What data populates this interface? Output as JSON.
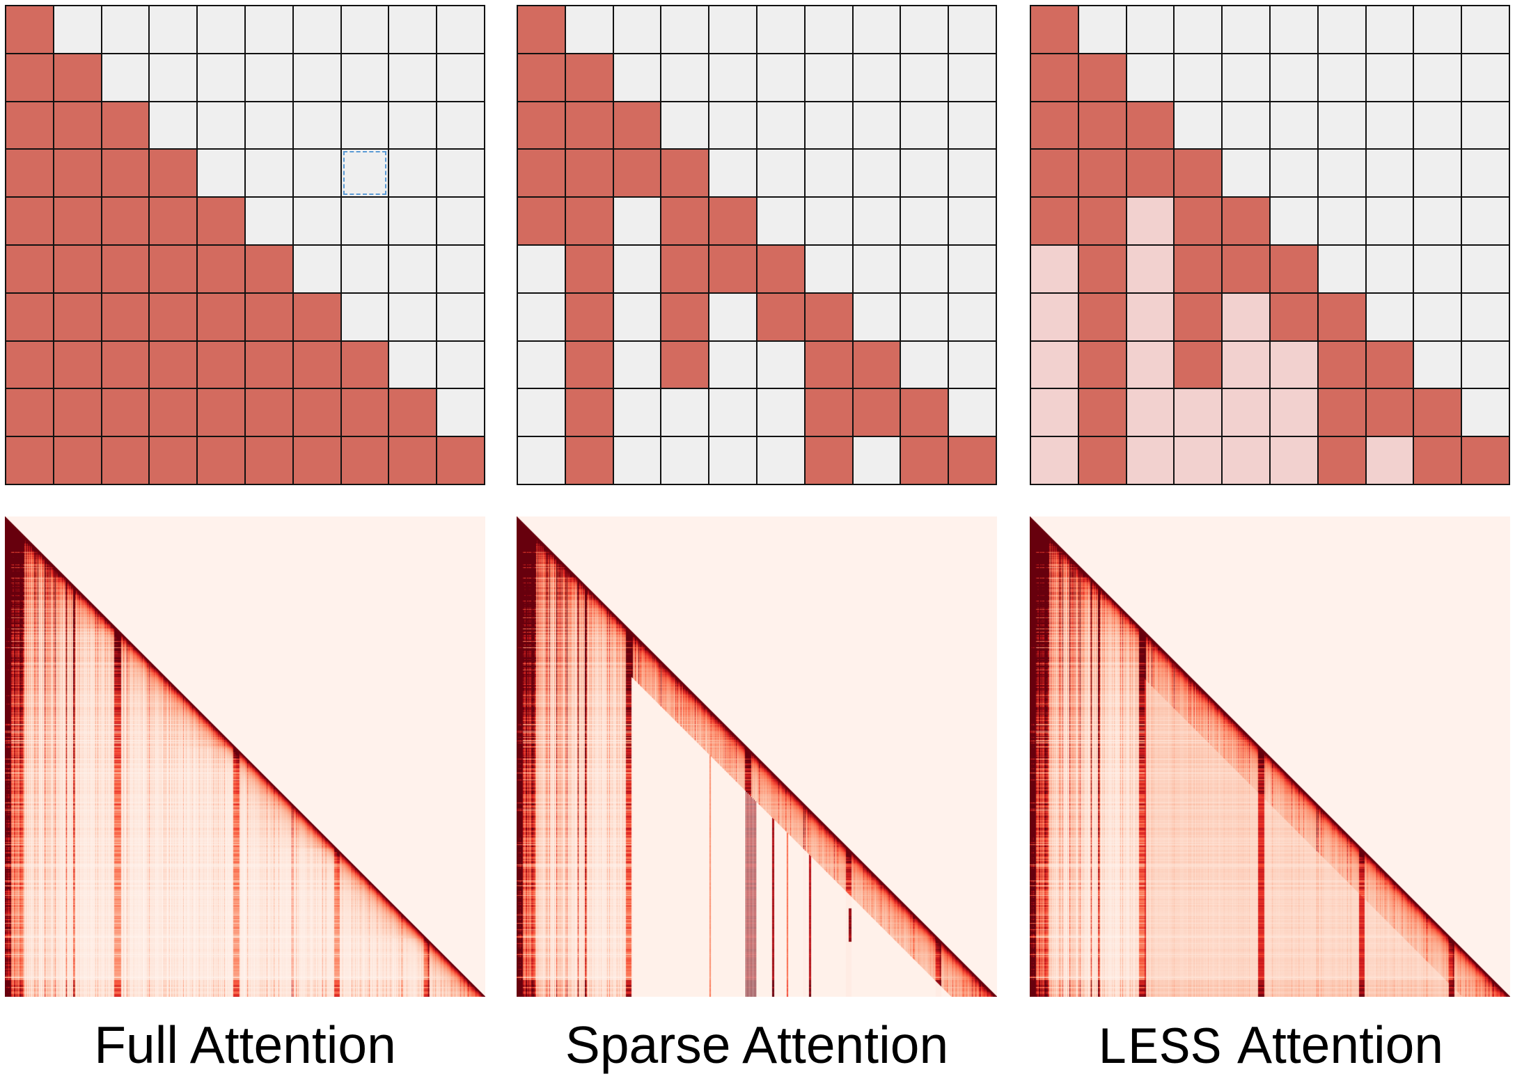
{
  "colors": {
    "attended": "#d36b5f",
    "masked": "#efefef",
    "compressed": "#f2d1cf",
    "grid_line": "#111111",
    "highlight": "#5b9bd5",
    "text": "#000000"
  },
  "heatmap_colormap": [
    "#fff5f0",
    "#fee0d2",
    "#fcbba1",
    "#fc9272",
    "#fb6a4a",
    "#ef3b2c",
    "#cb181d",
    "#a50f15",
    "#67000d"
  ],
  "panels": [
    {
      "label": "Full Attention",
      "blocks": [
        [
          1,
          0,
          0,
          0,
          0,
          0,
          0,
          0,
          0,
          0
        ],
        [
          1,
          1,
          0,
          0,
          0,
          0,
          0,
          0,
          0,
          0
        ],
        [
          1,
          1,
          1,
          0,
          0,
          0,
          0,
          0,
          0,
          0
        ],
        [
          1,
          1,
          1,
          1,
          0,
          0,
          0,
          0,
          0,
          0
        ],
        [
          1,
          1,
          1,
          1,
          1,
          0,
          0,
          0,
          0,
          0
        ],
        [
          1,
          1,
          1,
          1,
          1,
          1,
          0,
          0,
          0,
          0
        ],
        [
          1,
          1,
          1,
          1,
          1,
          1,
          1,
          0,
          0,
          0
        ],
        [
          1,
          1,
          1,
          1,
          1,
          1,
          1,
          1,
          0,
          0
        ],
        [
          1,
          1,
          1,
          1,
          1,
          1,
          1,
          1,
          1,
          0
        ],
        [
          1,
          1,
          1,
          1,
          1,
          1,
          1,
          1,
          1,
          1
        ]
      ],
      "highlight_cell": {
        "row": 3,
        "col": 7
      }
    },
    {
      "label": "Sparse Attention",
      "blocks": [
        [
          1,
          0,
          0,
          0,
          0,
          0,
          0,
          0,
          0,
          0
        ],
        [
          1,
          1,
          0,
          0,
          0,
          0,
          0,
          0,
          0,
          0
        ],
        [
          1,
          1,
          1,
          0,
          0,
          0,
          0,
          0,
          0,
          0
        ],
        [
          1,
          1,
          1,
          1,
          0,
          0,
          0,
          0,
          0,
          0
        ],
        [
          1,
          1,
          0,
          1,
          1,
          0,
          0,
          0,
          0,
          0
        ],
        [
          0,
          1,
          0,
          1,
          1,
          1,
          0,
          0,
          0,
          0
        ],
        [
          0,
          1,
          0,
          1,
          0,
          1,
          1,
          0,
          0,
          0
        ],
        [
          0,
          1,
          0,
          1,
          0,
          0,
          1,
          1,
          0,
          0
        ],
        [
          0,
          1,
          0,
          0,
          0,
          0,
          1,
          1,
          1,
          0
        ],
        [
          0,
          1,
          0,
          0,
          0,
          0,
          1,
          0,
          1,
          1
        ]
      ]
    },
    {
      "label_mono": "LESS",
      "label": "Attention",
      "blocks": [
        [
          1,
          0,
          0,
          0,
          0,
          0,
          0,
          0,
          0,
          0
        ],
        [
          1,
          1,
          0,
          0,
          0,
          0,
          0,
          0,
          0,
          0
        ],
        [
          1,
          1,
          1,
          0,
          0,
          0,
          0,
          0,
          0,
          0
        ],
        [
          1,
          1,
          1,
          1,
          0,
          0,
          0,
          0,
          0,
          0
        ],
        [
          1,
          1,
          2,
          1,
          1,
          0,
          0,
          0,
          0,
          0
        ],
        [
          2,
          1,
          2,
          1,
          1,
          1,
          0,
          0,
          0,
          0
        ],
        [
          2,
          1,
          2,
          1,
          2,
          1,
          1,
          0,
          0,
          0
        ],
        [
          2,
          1,
          2,
          1,
          2,
          2,
          1,
          1,
          0,
          0
        ],
        [
          2,
          1,
          2,
          2,
          2,
          2,
          1,
          1,
          1,
          0
        ],
        [
          2,
          1,
          2,
          2,
          2,
          2,
          1,
          2,
          1,
          1
        ]
      ]
    }
  ]
}
